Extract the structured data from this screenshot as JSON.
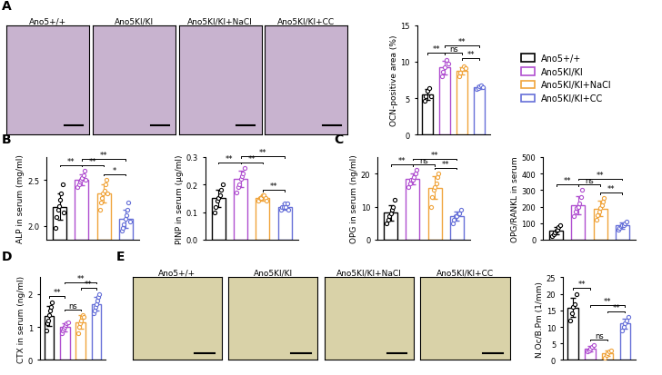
{
  "images": [
    {
      "panel": "A",
      "labels": [
        "Ano5+/+",
        "Ano5KI/KI",
        "Ano5KI/KI+NaCl",
        "Ano5KI/KI+CC"
      ]
    },
    {
      "panel": "E",
      "labels": [
        "Ano5+/+",
        "Ano5KI/KI",
        "Ano5KI/KI+NaCl",
        "Ano5KI/KI+CC"
      ]
    }
  ],
  "chart_data": [
    {
      "type": "bar",
      "panel": "A",
      "ylabel": "OCN-positive area (%)",
      "categories": [
        "Ano5+/+",
        "Ano5KI/KI",
        "Ano5KI/KI+NaCl",
        "Ano5KI/KI+CC"
      ],
      "colors": [
        "#000000",
        "#b04fd0",
        "#f0a43c",
        "#6670d8"
      ],
      "values": [
        5.5,
        9.2,
        8.8,
        6.5
      ],
      "errors": [
        0.7,
        0.9,
        0.5,
        0.2
      ],
      "points": [
        [
          4.6,
          5.2,
          6.0,
          6.4,
          5.3
        ],
        [
          8.0,
          8.6,
          9.2,
          10.2,
          9.8
        ],
        [
          8.0,
          8.5,
          9.0,
          9.4,
          9.1
        ],
        [
          6.2,
          6.4,
          6.6,
          6.8,
          6.5
        ]
      ],
      "significance": [
        {
          "pair": [
            0,
            1
          ],
          "label": "**"
        },
        {
          "pair": [
            1,
            2
          ],
          "label": "ns"
        },
        {
          "pair": [
            2,
            3
          ],
          "label": "**"
        },
        {
          "pair": [
            1,
            3
          ],
          "label": "**"
        }
      ],
      "ylim": [
        0,
        15
      ],
      "yticks": [
        0,
        5,
        10,
        15
      ],
      "tick_labels": "y",
      "legend": "center left"
    },
    {
      "type": "bar",
      "panel": "B",
      "ylabel": "ALP in serum (mg/ml)",
      "categories": [
        "Ano5+/+",
        "Ano5KI/KI",
        "Ano5KI/KI+NaCl",
        "Ano5KI/KI+CC"
      ],
      "colors": [
        "#000000",
        "#b04fd0",
        "#f0a43c",
        "#6670d8"
      ],
      "values": [
        2.21,
        2.5,
        2.35,
        2.08
      ],
      "errors": [
        0.14,
        0.06,
        0.1,
        0.1
      ],
      "points": [
        [
          1.98,
          2.1,
          2.18,
          2.22,
          2.28,
          2.35,
          2.45,
          2.15
        ],
        [
          2.42,
          2.45,
          2.48,
          2.5,
          2.52,
          2.55,
          2.6,
          2.5
        ],
        [
          2.18,
          2.25,
          2.3,
          2.35,
          2.38,
          2.45,
          2.5,
          2.35
        ],
        [
          1.95,
          1.98,
          2.02,
          2.08,
          2.12,
          2.18,
          2.25,
          2.05
        ]
      ],
      "significance": [
        {
          "pair": [
            0,
            1
          ],
          "label": "**"
        },
        {
          "pair": [
            1,
            2
          ],
          "label": "**"
        },
        {
          "pair": [
            2,
            3
          ],
          "label": "*"
        },
        {
          "pair": [
            1,
            3
          ],
          "label": "**"
        }
      ],
      "ylim": [
        1.85,
        2.75
      ],
      "yticks": [
        2.0,
        2.5
      ],
      "tick_labels": "y"
    },
    {
      "type": "bar",
      "panel": "B",
      "ylabel": "PINP in serum (µg/ml)",
      "categories": [
        "Ano5+/+",
        "Ano5KI/KI",
        "Ano5KI/KI+NaCl",
        "Ano5KI/KI+CC"
      ],
      "colors": [
        "#000000",
        "#b04fd0",
        "#f0a43c",
        "#6670d8"
      ],
      "values": [
        0.15,
        0.22,
        0.15,
        0.12
      ],
      "errors": [
        0.03,
        0.03,
        0.01,
        0.01
      ],
      "points": [
        [
          0.1,
          0.12,
          0.14,
          0.15,
          0.16,
          0.18,
          0.2
        ],
        [
          0.17,
          0.19,
          0.2,
          0.22,
          0.23,
          0.24,
          0.26
        ],
        [
          0.14,
          0.15,
          0.15,
          0.16,
          0.16,
          0.15,
          0.14
        ],
        [
          0.11,
          0.12,
          0.12,
          0.13,
          0.12,
          0.13,
          0.11
        ]
      ],
      "significance": [
        {
          "pair": [
            0,
            1
          ],
          "label": "**"
        },
        {
          "pair": [
            1,
            2
          ],
          "label": "**"
        },
        {
          "pair": [
            2,
            3
          ],
          "label": "**"
        },
        {
          "pair": [
            1,
            3
          ],
          "label": "**"
        }
      ],
      "ylim": [
        0,
        0.3
      ],
      "yticks": [
        0.0,
        0.1,
        0.2,
        0.3
      ],
      "tick_labels": "y"
    },
    {
      "type": "bar",
      "panel": "C",
      "ylabel": "OPG in serum (ng/ml)",
      "categories": [
        "Ano5+/+",
        "Ano5KI/KI",
        "Ano5KI/KI+NaCl",
        "Ano5KI/KI+CC"
      ],
      "colors": [
        "#000000",
        "#b04fd0",
        "#f0a43c",
        "#6670d8"
      ],
      "values": [
        8.1,
        18.4,
        15.7,
        7.1
      ],
      "errors": [
        2.4,
        1.6,
        3.4,
        1.3
      ],
      "points": [
        [
          5,
          6,
          7,
          8,
          9,
          10,
          12
        ],
        [
          16,
          17,
          18,
          18,
          19,
          20,
          21
        ],
        [
          10,
          13,
          15,
          16,
          17,
          19,
          20
        ],
        [
          5,
          6,
          7,
          7,
          8,
          8,
          9
        ]
      ],
      "significance": [
        {
          "pair": [
            0,
            1
          ],
          "label": "**"
        },
        {
          "pair": [
            1,
            2
          ],
          "label": "ns"
        },
        {
          "pair": [
            2,
            3
          ],
          "label": "**"
        },
        {
          "pair": [
            1,
            3
          ],
          "label": "**"
        }
      ],
      "ylim": [
        0,
        25
      ],
      "yticks": [
        0,
        10,
        20
      ],
      "tick_labels": "y"
    },
    {
      "type": "bar",
      "panel": "C",
      "ylabel": "OPG/RANKL in serum",
      "categories": [
        "Ano5+/+",
        "Ano5KI/KI",
        "Ano5KI/KI+NaCl",
        "Ano5KI/KI+CC"
      ],
      "colors": [
        "#000000",
        "#b04fd0",
        "#f0a43c",
        "#6670d8"
      ],
      "values": [
        54,
        211,
        189,
        85
      ],
      "errors": [
        24,
        55,
        45,
        17
      ],
      "points": [
        [
          20,
          35,
          45,
          55,
          60,
          75,
          90
        ],
        [
          140,
          170,
          190,
          200,
          220,
          260,
          300
        ],
        [
          120,
          150,
          170,
          190,
          210,
          230,
          250
        ],
        [
          60,
          70,
          80,
          85,
          90,
          100,
          110
        ]
      ],
      "significance": [
        {
          "pair": [
            0,
            1
          ],
          "label": "**"
        },
        {
          "pair": [
            1,
            2
          ],
          "label": "ns"
        },
        {
          "pair": [
            2,
            3
          ],
          "label": "**"
        },
        {
          "pair": [
            1,
            3
          ],
          "label": "**"
        }
      ],
      "ylim": [
        0,
        500
      ],
      "yticks": [
        0,
        100,
        200,
        300,
        400,
        500
      ],
      "tick_labels": "y"
    },
    {
      "type": "bar",
      "panel": "D",
      "ylabel": "CTX in serum (ng/ml)",
      "categories": [
        "Ano5+/+",
        "Ano5KI/KI",
        "Ano5KI/KI+NaCl",
        "Ano5KI/KI+CC"
      ],
      "colors": [
        "#000000",
        "#b04fd0",
        "#f0a43c",
        "#6670d8"
      ],
      "values": [
        1.34,
        0.99,
        1.15,
        1.7
      ],
      "errors": [
        0.3,
        0.12,
        0.2,
        0.2
      ],
      "points": [
        [
          0.9,
          1.1,
          1.2,
          1.35,
          1.5,
          1.6,
          1.75
        ],
        [
          0.8,
          0.9,
          0.95,
          1.0,
          1.05,
          1.1,
          1.15
        ],
        [
          0.8,
          1.0,
          1.1,
          1.2,
          1.3,
          1.35,
          1.3
        ],
        [
          1.4,
          1.5,
          1.6,
          1.7,
          1.8,
          1.9,
          2.0
        ]
      ],
      "significance": [
        {
          "pair": [
            0,
            1
          ],
          "label": "**"
        },
        {
          "pair": [
            1,
            2
          ],
          "label": "ns"
        },
        {
          "pair": [
            2,
            3
          ],
          "label": "**"
        },
        {
          "pair": [
            1,
            3
          ],
          "label": "**"
        }
      ],
      "ylim": [
        0,
        2.5
      ],
      "yticks": [
        0,
        1,
        2
      ],
      "tick_labels": "y"
    },
    {
      "type": "bar",
      "panel": "E",
      "ylabel": "N.Oc/B.Pm (1/mm)",
      "categories": [
        "Ano5+/+",
        "Ano5KI/KI",
        "Ano5KI/KI+NaCl",
        "Ano5KI/KI+CC"
      ],
      "colors": [
        "#000000",
        "#b04fd0",
        "#f0a43c",
        "#6670d8"
      ],
      "values": [
        15.8,
        3.5,
        2,
        11
      ],
      "errors": [
        2.9,
        0.8,
        0.9,
        1.6
      ],
      "points": [
        [
          12,
          14,
          16,
          17,
          20
        ],
        [
          2.5,
          3,
          3.5,
          4,
          4.5
        ],
        [
          0.8,
          1.5,
          2,
          2.5,
          3
        ],
        [
          9,
          10,
          11,
          12,
          13
        ]
      ],
      "significance": [
        {
          "pair": [
            0,
            1
          ],
          "label": "**"
        },
        {
          "pair": [
            1,
            2
          ],
          "label": "ns"
        },
        {
          "pair": [
            2,
            3
          ],
          "label": "**"
        },
        {
          "pair": [
            1,
            3
          ],
          "label": "**"
        }
      ],
      "ylim": [
        0,
        25
      ],
      "yticks": [
        0,
        5,
        10,
        15,
        20,
        25
      ],
      "tick_labels": "y"
    }
  ]
}
